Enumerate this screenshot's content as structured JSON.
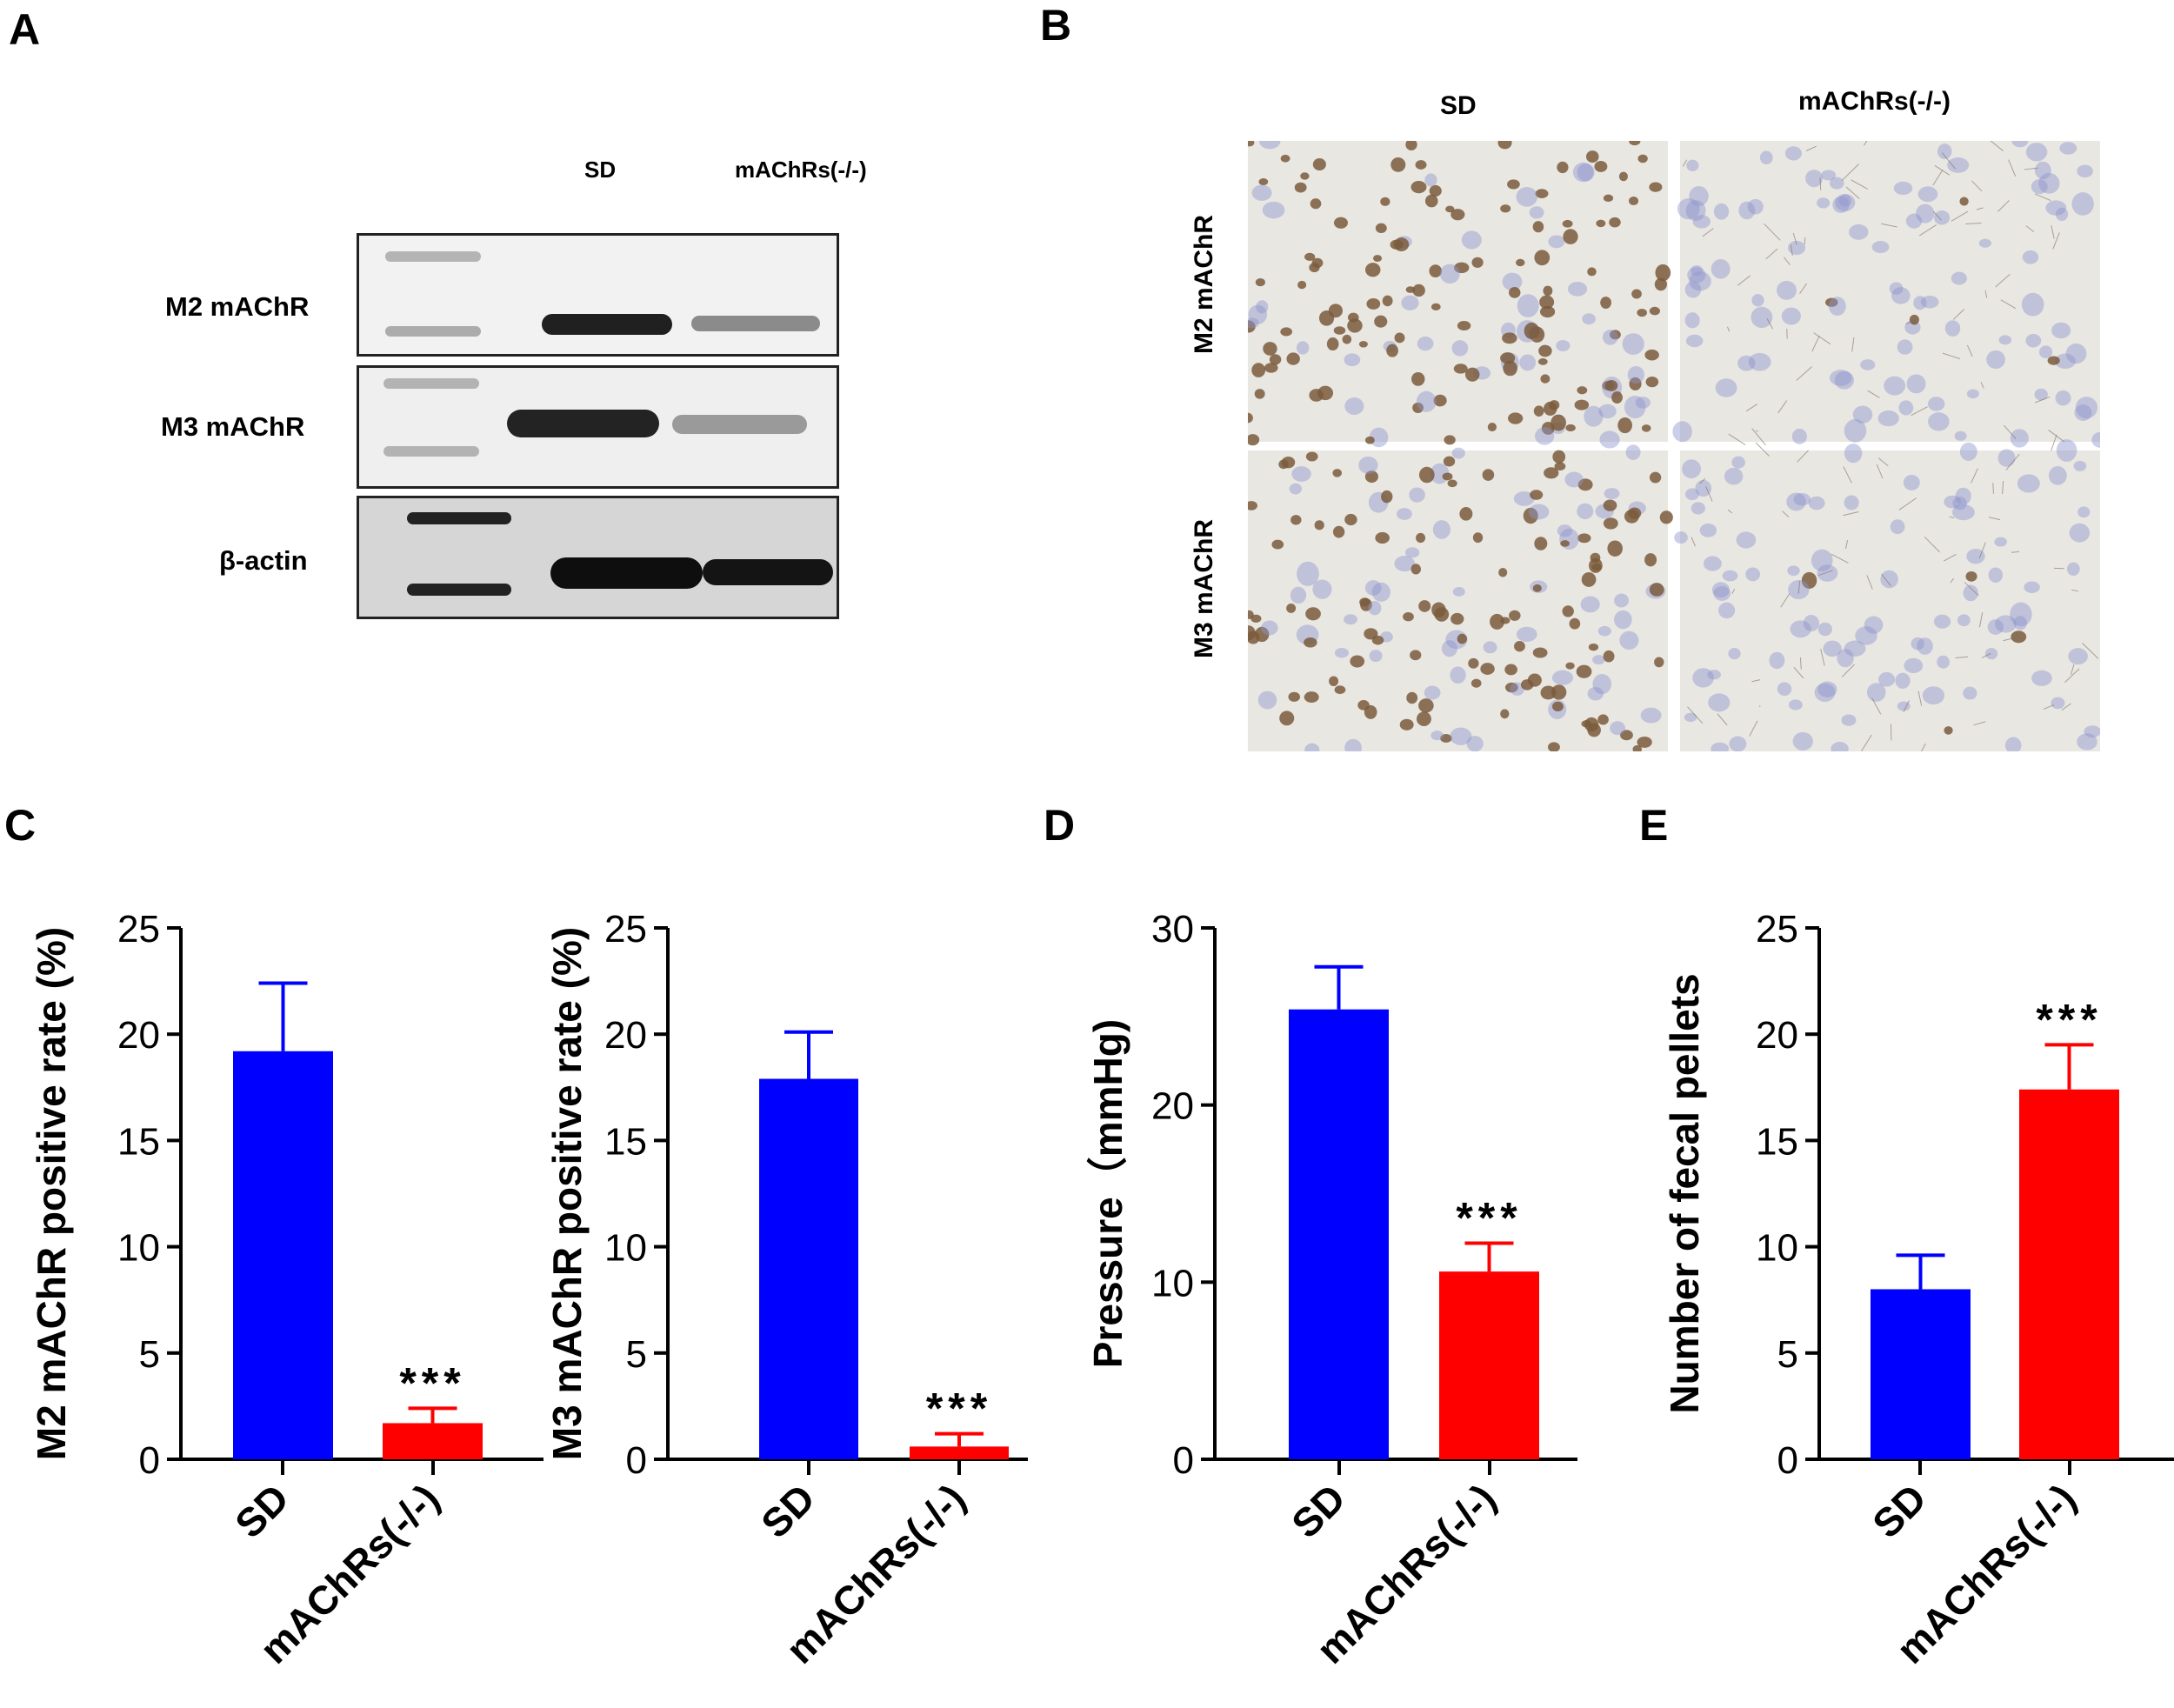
{
  "panels": {
    "a": "A",
    "b": "B",
    "c": "C",
    "d": "D",
    "e": "E"
  },
  "western_blot": {
    "columns": [
      "SD",
      "mAChRs(-/-)"
    ],
    "rows": [
      "M2 mAChR",
      "M3 mAChR",
      "β-actin"
    ]
  },
  "ihc": {
    "columns": [
      "SD",
      "mAChRs(-/-)"
    ],
    "rows": [
      "M2 mAChR",
      "M3 mAChR"
    ]
  },
  "colors": {
    "sd": "#0000ff",
    "ko": "#ff0000",
    "nucleus_brown": "#7a5a3c",
    "nucleus_blue": "#8f95cf"
  },
  "chart_data": [
    {
      "type": "bar",
      "categories": [
        "SD",
        "mAChRs(-/-)"
      ],
      "values": [
        19.2,
        1.7
      ],
      "errors": [
        3.2,
        0.7
      ],
      "significance": [
        "",
        "***"
      ],
      "ylabel": "M2 mAChR positive rate (%)",
      "ylim": [
        0,
        25
      ],
      "yticks": [
        "0",
        "5",
        "10",
        "15",
        "20",
        "25"
      ]
    },
    {
      "type": "bar",
      "categories": [
        "SD",
        "mAChRs(-/-)"
      ],
      "values": [
        17.9,
        0.6
      ],
      "errors": [
        2.2,
        0.6
      ],
      "significance": [
        "",
        "***"
      ],
      "ylabel": "M3 mAChR positive rate (%)",
      "ylim": [
        0,
        25
      ],
      "yticks": [
        "0",
        "5",
        "10",
        "15",
        "20",
        "25"
      ]
    },
    {
      "type": "bar",
      "categories": [
        "SD",
        "mAChRs(-/-)"
      ],
      "values": [
        25.4,
        10.6
      ],
      "errors": [
        2.4,
        1.6
      ],
      "significance": [
        "",
        "***"
      ],
      "ylabel": "Pressure（mmHg)",
      "ylim": [
        0,
        30
      ],
      "yticks": [
        "0",
        "10",
        "20",
        "30"
      ]
    },
    {
      "type": "bar",
      "categories": [
        "SD",
        "mAChRs(-/-)"
      ],
      "values": [
        8.0,
        17.4
      ],
      "errors": [
        1.6,
        2.1
      ],
      "significance": [
        "",
        "***"
      ],
      "ylabel": "Number of fecal pellets",
      "ylim": [
        0,
        25
      ],
      "yticks": [
        "0",
        "5",
        "10",
        "15",
        "20",
        "25"
      ]
    }
  ]
}
